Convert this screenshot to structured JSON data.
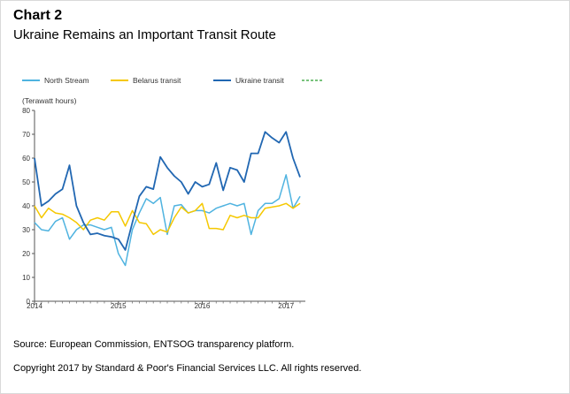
{
  "header": {
    "chart_number": "Chart 2",
    "title": "Ukraine Remains an Important Transit Route"
  },
  "footer": {
    "source": "Source: European Commission, ENTSOG transparency platform.",
    "copyright": "Copyright 2017 by Standard & Poor's Financial Services LLC. All rights reserved."
  },
  "chart_data": {
    "type": "line",
    "title": "Ukraine Remains an Important Transit Route",
    "ylabel": "(Terawatt hours)",
    "xlabel": "",
    "ylim": [
      0,
      80
    ],
    "yticks": [
      0,
      10,
      20,
      30,
      40,
      50,
      60,
      70,
      80
    ],
    "xlim": [
      2014.0,
      2017.23
    ],
    "xticks": [
      2014,
      2015,
      2016,
      2017
    ],
    "xtick_labels": [
      "2014",
      "2015",
      "2016",
      "2017"
    ],
    "grid": false,
    "legend_position": "top",
    "legend_extra_swatch_color": "#4caf50",
    "x": [
      2014.0,
      2014.083,
      2014.167,
      2014.25,
      2014.333,
      2014.417,
      2014.5,
      2014.583,
      2014.667,
      2014.75,
      2014.833,
      2014.917,
      2015.0,
      2015.083,
      2015.167,
      2015.25,
      2015.333,
      2015.417,
      2015.5,
      2015.583,
      2015.667,
      2015.75,
      2015.833,
      2015.917,
      2016.0,
      2016.083,
      2016.167,
      2016.25,
      2016.333,
      2016.417,
      2016.5,
      2016.583,
      2016.667,
      2016.75,
      2016.833,
      2016.917,
      2017.0,
      2017.083,
      2017.167
    ],
    "series": [
      {
        "name": "North Stream",
        "color": "#4fb3e0",
        "values": [
          33,
          30,
          29.5,
          33.5,
          35,
          26,
          30,
          32,
          32,
          31,
          30,
          31,
          20,
          15,
          30,
          37,
          43,
          41,
          43.5,
          28,
          40,
          40.5,
          37,
          38,
          38,
          37,
          39,
          40,
          41,
          40,
          41,
          28,
          38,
          41,
          41,
          43,
          53,
          39,
          44
        ]
      },
      {
        "name": "Belarus transit",
        "color": "#f5c800",
        "values": [
          40,
          35,
          39,
          37,
          36.5,
          35,
          33,
          30,
          34,
          35,
          34,
          37.5,
          37.5,
          31.5,
          38,
          33,
          32.5,
          28,
          30,
          29,
          35,
          39.5,
          37,
          38,
          41,
          30.5,
          30.5,
          30,
          36,
          35,
          36,
          35,
          35,
          39,
          39.5,
          40,
          41,
          39,
          41
        ]
      },
      {
        "name": "Ukraine transit",
        "color": "#2167b2",
        "values": [
          60,
          40,
          42,
          45,
          47,
          57,
          40,
          33,
          28,
          28.5,
          27.5,
          27,
          26,
          21.5,
          33,
          44,
          48,
          47,
          60.5,
          56,
          52.5,
          50,
          45,
          50,
          48,
          49,
          58,
          46.5,
          56,
          55,
          50,
          62,
          62,
          71,
          68.5,
          66.5,
          71,
          60,
          52
        ]
      }
    ]
  }
}
